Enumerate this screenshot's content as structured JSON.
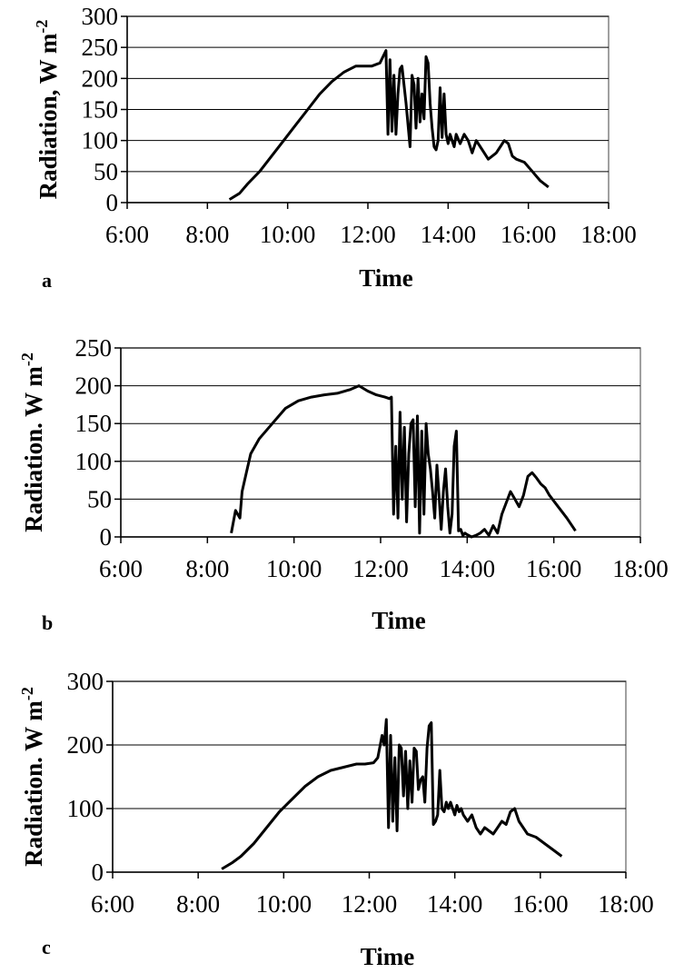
{
  "chart_data": [
    {
      "type": "line",
      "panel_label": "a",
      "xlabel": "Time",
      "ylabel": "Radiation, W m",
      "ylabel_sup": "-2",
      "xlim": [
        6,
        18
      ],
      "ylim": [
        0,
        300
      ],
      "yticks": [
        0,
        50,
        100,
        150,
        200,
        250,
        300
      ],
      "xtick_labels": [
        "6:00",
        "8:00",
        "10:00",
        "12:00",
        "14:00",
        "16:00",
        "18:00"
      ],
      "grid": true,
      "series": [
        {
          "x": [
            8.55,
            8.8,
            9.0,
            9.3,
            9.6,
            9.9,
            10.2,
            10.5,
            10.8,
            11.1,
            11.4,
            11.7,
            11.9,
            12.1,
            12.3,
            12.45,
            12.5,
            12.55,
            12.6,
            12.65,
            12.7,
            12.75,
            12.8,
            12.85,
            12.95,
            13.05,
            13.1,
            13.15,
            13.2,
            13.25,
            13.3,
            13.35,
            13.4,
            13.45,
            13.5,
            13.55,
            13.6,
            13.65,
            13.7,
            13.75,
            13.8,
            13.85,
            13.9,
            13.95,
            14.0,
            14.05,
            14.1,
            14.15,
            14.2,
            14.3,
            14.4,
            14.5,
            14.6,
            14.7,
            14.8,
            14.9,
            15.0,
            15.1,
            15.2,
            15.3,
            15.4,
            15.5,
            15.6,
            15.7,
            15.9,
            16.1,
            16.3,
            16.5
          ],
          "y": [
            5,
            15,
            30,
            50,
            75,
            100,
            125,
            150,
            175,
            195,
            210,
            220,
            220,
            220,
            225,
            245,
            110,
            230,
            115,
            205,
            110,
            175,
            215,
            220,
            160,
            90,
            205,
            190,
            120,
            200,
            130,
            175,
            135,
            235,
            225,
            160,
            120,
            90,
            85,
            100,
            185,
            105,
            175,
            110,
            95,
            110,
            100,
            90,
            110,
            95,
            110,
            100,
            80,
            100,
            90,
            80,
            70,
            75,
            80,
            90,
            100,
            95,
            75,
            70,
            65,
            50,
            35,
            25
          ]
        }
      ]
    },
    {
      "type": "line",
      "panel_label": "b",
      "xlabel": "Time",
      "ylabel": "Radiation. W m",
      "ylabel_sup": "-2",
      "xlim": [
        6,
        18
      ],
      "ylim": [
        0,
        250
      ],
      "yticks": [
        0,
        50,
        100,
        150,
        200,
        250
      ],
      "xtick_labels": [
        "6:00",
        "8:00",
        "10:00",
        "12:00",
        "14:00",
        "16:00",
        "18:00"
      ],
      "grid": true,
      "series": [
        {
          "x": [
            8.55,
            8.65,
            8.75,
            8.8,
            8.9,
            9.0,
            9.2,
            9.5,
            9.8,
            10.1,
            10.4,
            10.7,
            11.0,
            11.3,
            11.5,
            11.7,
            11.9,
            12.1,
            12.2,
            12.25,
            12.3,
            12.35,
            12.4,
            12.45,
            12.5,
            12.55,
            12.6,
            12.65,
            12.7,
            12.75,
            12.8,
            12.85,
            12.9,
            12.95,
            13.0,
            13.05,
            13.1,
            13.15,
            13.2,
            13.25,
            13.3,
            13.35,
            13.4,
            13.45,
            13.5,
            13.55,
            13.6,
            13.65,
            13.7,
            13.75,
            13.8,
            13.85,
            13.9,
            13.95,
            14.0,
            14.1,
            14.2,
            14.3,
            14.4,
            14.5,
            14.6,
            14.7,
            14.8,
            14.9,
            15.0,
            15.1,
            15.2,
            15.3,
            15.4,
            15.5,
            15.6,
            15.7,
            15.8,
            15.9,
            16.1,
            16.3,
            16.5
          ],
          "y": [
            5,
            35,
            25,
            60,
            85,
            110,
            130,
            150,
            170,
            180,
            185,
            188,
            190,
            195,
            200,
            193,
            188,
            185,
            183,
            185,
            30,
            120,
            25,
            165,
            50,
            145,
            20,
            110,
            150,
            155,
            40,
            160,
            5,
            140,
            30,
            150,
            110,
            90,
            60,
            25,
            95,
            55,
            10,
            60,
            90,
            40,
            5,
            30,
            120,
            140,
            8,
            10,
            2,
            5,
            3,
            0,
            2,
            5,
            10,
            2,
            15,
            5,
            30,
            45,
            60,
            50,
            40,
            55,
            80,
            85,
            78,
            70,
            65,
            55,
            40,
            25,
            8
          ]
        }
      ]
    },
    {
      "type": "line",
      "panel_label": "c",
      "xlabel": "Time",
      "ylabel": "Radiation. W m",
      "ylabel_sup": "-2",
      "xlim": [
        6,
        18
      ],
      "ylim": [
        0,
        300
      ],
      "yticks": [
        0,
        100,
        200,
        300
      ],
      "xtick_labels": [
        "6:00",
        "8:00",
        "10:00",
        "12:00",
        "14:00",
        "16:00",
        "18:00"
      ],
      "grid": true,
      "series": [
        {
          "x": [
            8.55,
            8.8,
            9.0,
            9.3,
            9.6,
            9.9,
            10.2,
            10.5,
            10.8,
            11.1,
            11.4,
            11.7,
            11.9,
            12.1,
            12.2,
            12.3,
            12.35,
            12.4,
            12.45,
            12.5,
            12.55,
            12.6,
            12.65,
            12.7,
            12.75,
            12.8,
            12.85,
            12.9,
            12.95,
            13.0,
            13.05,
            13.1,
            13.15,
            13.2,
            13.25,
            13.3,
            13.35,
            13.4,
            13.45,
            13.5,
            13.55,
            13.6,
            13.65,
            13.7,
            13.75,
            13.8,
            13.85,
            13.9,
            13.95,
            14.0,
            14.05,
            14.1,
            14.15,
            14.2,
            14.3,
            14.4,
            14.5,
            14.6,
            14.7,
            14.8,
            14.9,
            15.0,
            15.1,
            15.2,
            15.3,
            15.4,
            15.5,
            15.6,
            15.7,
            15.9,
            16.1,
            16.3,
            16.5
          ],
          "y": [
            5,
            15,
            25,
            45,
            70,
            95,
            115,
            135,
            150,
            160,
            165,
            170,
            170,
            172,
            180,
            215,
            200,
            240,
            70,
            215,
            80,
            180,
            65,
            200,
            195,
            120,
            190,
            100,
            175,
            110,
            195,
            190,
            130,
            145,
            150,
            110,
            195,
            230,
            235,
            75,
            80,
            90,
            160,
            100,
            95,
            110,
            100,
            110,
            100,
            90,
            105,
            95,
            100,
            90,
            80,
            90,
            70,
            60,
            70,
            65,
            60,
            70,
            80,
            75,
            95,
            100,
            80,
            70,
            60,
            55,
            45,
            35,
            25
          ]
        }
      ]
    }
  ]
}
